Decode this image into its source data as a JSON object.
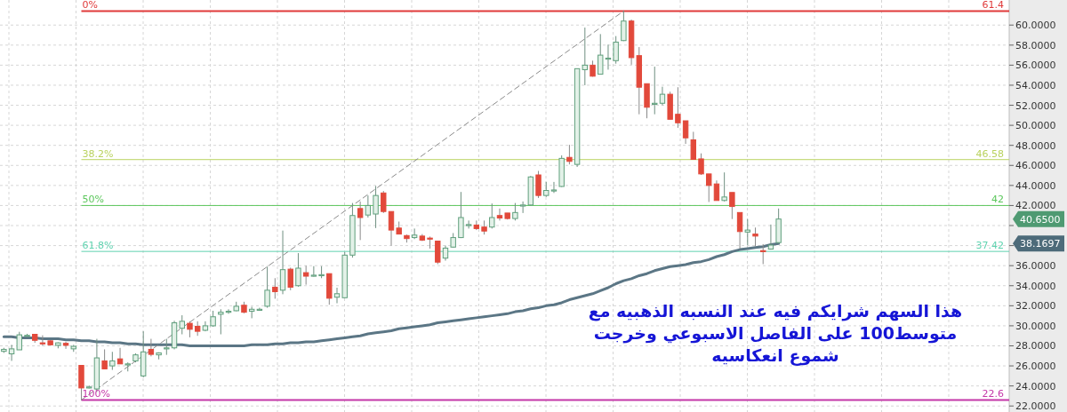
{
  "chart_data": {
    "type": "candlestick",
    "categories": [
      null,
      null,
      null,
      null,
      null,
      null,
      null,
      null,
      null,
      null,
      null,
      null,
      null,
      null,
      null,
      null,
      null,
      null,
      null,
      null,
      null,
      null,
      null,
      null,
      null,
      null,
      null,
      null,
      null,
      null,
      null,
      null,
      null,
      null,
      null,
      null,
      null,
      null,
      null,
      null,
      null,
      null,
      null,
      null,
      null,
      null,
      null,
      null,
      null,
      null,
      null,
      null,
      null,
      null,
      null,
      null,
      null,
      null,
      null,
      null,
      null,
      null,
      null,
      null,
      null,
      null,
      null,
      null,
      null,
      null,
      null,
      null,
      null,
      null,
      null,
      null,
      null,
      null,
      null,
      null,
      null,
      null,
      null,
      null,
      null,
      null,
      null,
      null,
      null,
      null,
      null,
      null,
      null,
      null,
      null,
      null,
      null,
      null,
      null,
      null,
      null
    ],
    "ohlc": [
      [
        27.45,
        27.8,
        27.3,
        27.65
      ],
      [
        27.2,
        28.1,
        26.5,
        27.7
      ],
      [
        27.6,
        29.4,
        27.6,
        29.1
      ],
      [
        29.0,
        29.2,
        28.9,
        29.05
      ],
      [
        29.15,
        29.15,
        28.3,
        28.55
      ],
      [
        28.3,
        29.05,
        28.0,
        28.2
      ],
      [
        28.5,
        28.55,
        28.05,
        28.1
      ],
      [
        28.05,
        28.35,
        27.75,
        28.3
      ],
      [
        28.25,
        28.4,
        27.7,
        28.05
      ],
      [
        27.7,
        28.1,
        27.4,
        27.95
      ],
      [
        26.05,
        26.05,
        22.6,
        23.8
      ],
      [
        23.85,
        24.05,
        23.75,
        23.9
      ],
      [
        23.7,
        28.7,
        23.4,
        26.8
      ],
      [
        26.5,
        27.65,
        25.7,
        25.7
      ],
      [
        26.0,
        27.4,
        25.6,
        26.5
      ],
      [
        26.7,
        27.8,
        26.2,
        26.2
      ],
      [
        26.15,
        26.35,
        25.45,
        26.2
      ],
      [
        26.5,
        27.25,
        26.35,
        27.1
      ],
      [
        25.0,
        29.45,
        24.85,
        27.4
      ],
      [
        27.65,
        28.7,
        26.95,
        27.15
      ],
      [
        27.1,
        27.35,
        26.65,
        27.3
      ],
      [
        27.7,
        28.7,
        27.1,
        27.8
      ],
      [
        27.8,
        30.5,
        27.65,
        30.3
      ],
      [
        29.75,
        31.05,
        29.15,
        30.45
      ],
      [
        30.25,
        30.45,
        28.85,
        29.65
      ],
      [
        29.95,
        30.45,
        29.0,
        29.45
      ],
      [
        29.55,
        30.45,
        29.45,
        30.0
      ],
      [
        30.0,
        31.5,
        29.9,
        30.9
      ],
      [
        31.15,
        31.65,
        29.15,
        31.35
      ],
      [
        31.4,
        31.65,
        31.2,
        31.45
      ],
      [
        31.5,
        32.4,
        31.45,
        31.95
      ],
      [
        32.05,
        32.4,
        31.25,
        31.35
      ],
      [
        31.45,
        31.9,
        30.75,
        31.65
      ],
      [
        31.6,
        31.8,
        31.5,
        31.65
      ],
      [
        31.95,
        35.9,
        31.8,
        33.55
      ],
      [
        33.85,
        34.75,
        32.7,
        33.4
      ],
      [
        33.55,
        39.5,
        33.15,
        35.6
      ],
      [
        35.65,
        35.8,
        33.55,
        33.85
      ],
      [
        34.0,
        37.25,
        33.9,
        35.75
      ],
      [
        35.3,
        36.0,
        34.1,
        34.95
      ],
      [
        35.0,
        35.95,
        34.9,
        35.05
      ],
      [
        35.05,
        35.95,
        34.75,
        35.1
      ],
      [
        35.2,
        35.2,
        32.1,
        32.75
      ],
      [
        32.85,
        33.8,
        32.25,
        33.2
      ],
      [
        32.8,
        37.35,
        32.75,
        37.05
      ],
      [
        37.05,
        42.25,
        36.8,
        41.0
      ],
      [
        41.7,
        42.4,
        38.55,
        40.8
      ],
      [
        41.05,
        43.0,
        40.8,
        42.0
      ],
      [
        41.15,
        43.95,
        39.75,
        43.0
      ],
      [
        43.25,
        43.45,
        41.25,
        41.4
      ],
      [
        41.4,
        41.4,
        38.0,
        39.55
      ],
      [
        39.75,
        40.4,
        39.15,
        39.15
      ],
      [
        39.0,
        39.1,
        38.3,
        38.7
      ],
      [
        38.8,
        39.7,
        38.65,
        39.05
      ],
      [
        38.95,
        39.15,
        38.45,
        38.55
      ],
      [
        38.75,
        38.9,
        37.7,
        38.7
      ],
      [
        38.45,
        38.45,
        36.15,
        36.35
      ],
      [
        36.75,
        38.0,
        36.5,
        37.75
      ],
      [
        37.85,
        39.25,
        37.8,
        38.8
      ],
      [
        38.8,
        43.35,
        38.75,
        40.8
      ],
      [
        40.05,
        40.5,
        39.7,
        40.1
      ],
      [
        40.05,
        40.5,
        39.55,
        39.7
      ],
      [
        39.85,
        40.5,
        39.1,
        39.45
      ],
      [
        39.85,
        42.2,
        39.7,
        40.8
      ],
      [
        41.0,
        41.7,
        40.5,
        40.75
      ],
      [
        41.25,
        41.25,
        40.6,
        40.7
      ],
      [
        40.7,
        42.25,
        40.5,
        41.3
      ],
      [
        42.0,
        42.4,
        41.25,
        42.05
      ],
      [
        42.05,
        44.95,
        42.0,
        44.85
      ],
      [
        45.05,
        45.45,
        42.75,
        43.0
      ],
      [
        43.0,
        44.35,
        42.85,
        43.5
      ],
      [
        43.5,
        44.35,
        43.25,
        43.55
      ],
      [
        43.9,
        47.0,
        43.85,
        46.7
      ],
      [
        46.8,
        48.05,
        46.1,
        46.4
      ],
      [
        46.1,
        55.65,
        45.85,
        55.65
      ],
      [
        55.55,
        59.75,
        54.0,
        56.0
      ],
      [
        56.0,
        56.45,
        54.85,
        54.9
      ],
      [
        55.1,
        59.1,
        55.1,
        57.0
      ],
      [
        56.65,
        58.05,
        55.55,
        56.7
      ],
      [
        56.45,
        58.9,
        56.15,
        58.3
      ],
      [
        58.45,
        61.4,
        58.4,
        60.4
      ],
      [
        60.4,
        60.55,
        56.05,
        56.75
      ],
      [
        56.95,
        57.8,
        51.1,
        53.8
      ],
      [
        54.15,
        54.15,
        50.7,
        51.8
      ],
      [
        52.15,
        55.85,
        51.1,
        52.2
      ],
      [
        52.2,
        53.85,
        52.0,
        53.1
      ],
      [
        53.1,
        53.35,
        50.6,
        50.6
      ],
      [
        51.1,
        53.8,
        49.75,
        50.25
      ],
      [
        50.45,
        50.45,
        48.15,
        48.75
      ],
      [
        48.55,
        49.35,
        46.6,
        46.6
      ],
      [
        46.65,
        47.2,
        45.05,
        45.15
      ],
      [
        45.15,
        45.15,
        42.35,
        44.0
      ],
      [
        44.15,
        44.5,
        42.5,
        42.5
      ],
      [
        42.5,
        45.3,
        42.4,
        42.85
      ],
      [
        43.3,
        43.3,
        40.65,
        41.9
      ],
      [
        41.3,
        41.3,
        37.7,
        39.4
      ],
      [
        39.35,
        40.65,
        38.05,
        39.55
      ],
      [
        39.15,
        39.8,
        37.95,
        38.95
      ],
      [
        37.5,
        38.15,
        36.15,
        37.45
      ],
      [
        37.65,
        40.1,
        37.6,
        38.05
      ],
      [
        38.3,
        41.7,
        38.2,
        40.65
      ]
    ],
    "series": [
      {
        "type": "line",
        "color": "#5b7685",
        "values": [
          28.9,
          28.9,
          28.8,
          28.8,
          28.8,
          28.7,
          28.7,
          28.7,
          28.6,
          28.6,
          28.5,
          28.5,
          28.4,
          28.4,
          28.3,
          28.3,
          28.2,
          28.2,
          28.1,
          28.1,
          28.1,
          28.1,
          28.1,
          28.1,
          28.0,
          28.0,
          28.0,
          28.0,
          28.0,
          28.0,
          28.0,
          28.0,
          28.1,
          28.1,
          28.1,
          28.2,
          28.2,
          28.3,
          28.3,
          28.4,
          28.4,
          28.5,
          28.6,
          28.7,
          28.8,
          28.9,
          29.0,
          29.2,
          29.3,
          29.4,
          29.5,
          29.7,
          29.8,
          29.9,
          30.0,
          30.1,
          30.3,
          30.4,
          30.5,
          30.6,
          30.7,
          30.8,
          30.9,
          31.0,
          31.1,
          31.2,
          31.4,
          31.5,
          31.7,
          31.8,
          32.0,
          32.1,
          32.3,
          32.6,
          32.8,
          33.0,
          33.2,
          33.5,
          33.8,
          34.2,
          34.5,
          34.7,
          35.0,
          35.2,
          35.5,
          35.7,
          35.9,
          36.0,
          36.1,
          36.3,
          36.4,
          36.6,
          36.9,
          37.1,
          37.4,
          37.6,
          37.7,
          37.8,
          37.9,
          38.1,
          38.2
        ]
      },
      {
        "type": "line",
        "color": "#8a8a8a",
        "line_style": "dashed",
        "values": [
          null,
          null,
          null,
          null,
          null,
          null,
          null,
          null,
          null,
          null,
          22.6,
          null,
          null,
          null,
          null,
          null,
          null,
          null,
          null,
          null,
          null,
          null,
          null,
          null,
          null,
          null,
          null,
          null,
          null,
          null,
          null,
          null,
          null,
          null,
          null,
          null,
          null,
          null,
          null,
          null,
          null,
          null,
          null,
          null,
          null,
          null,
          null,
          null,
          null,
          null,
          null,
          null,
          null,
          null,
          null,
          null,
          null,
          null,
          null,
          null,
          null,
          null,
          null,
          null,
          null,
          null,
          null,
          null,
          null,
          null,
          null,
          null,
          null,
          null,
          null,
          null,
          null,
          null,
          null,
          null,
          61.4,
          null,
          null,
          null,
          null,
          null,
          null,
          null,
          null,
          null,
          null,
          null,
          null,
          null,
          null,
          null,
          null,
          null,
          null,
          null,
          null
        ]
      }
    ],
    "ylim": [
      21.4,
      62.5
    ],
    "yticks": [
      {
        "value": 22,
        "label": "22.0000"
      },
      {
        "value": 24,
        "label": "24.0000"
      },
      {
        "value": 26,
        "label": "26.0000"
      },
      {
        "value": 28,
        "label": "28.0000"
      },
      {
        "value": 30,
        "label": "30.0000"
      },
      {
        "value": 32,
        "label": "32.0000"
      },
      {
        "value": 34,
        "label": "34.0000"
      },
      {
        "value": 36,
        "label": "36.0000"
      },
      {
        "value": 38,
        "label": null
      },
      {
        "value": 40,
        "label": null
      },
      {
        "value": 42,
        "label": "42.0000"
      },
      {
        "value": 44,
        "label": "44.0000"
      },
      {
        "value": 46,
        "label": "46.0000"
      },
      {
        "value": 48,
        "label": "48.0000"
      },
      {
        "value": 50,
        "label": "50.0000"
      },
      {
        "value": 52,
        "label": "52.0000"
      },
      {
        "value": 54,
        "label": "54.0000"
      },
      {
        "value": 56,
        "label": "56.0000"
      },
      {
        "value": 58,
        "label": "58.0000"
      },
      {
        "value": 60,
        "label": "60.0000"
      }
    ],
    "ref_lines": [
      {
        "axis": "y",
        "value": 61.4,
        "label": "61.4",
        "color": "#e03a3a"
      },
      {
        "axis": "y",
        "value": 46.58,
        "label": "46.58",
        "color": "#b9d25e"
      },
      {
        "axis": "y",
        "value": 42,
        "label": "42",
        "color": "#5cc75c"
      },
      {
        "axis": "y",
        "value": 37.42,
        "label": "37.42",
        "color": "#5fd3b0"
      },
      {
        "axis": "y",
        "value": 22.6,
        "label": "22.6",
        "color": "#c437a8"
      }
    ],
    "annotations": [
      "هذا السهم شرايكم فيه عند النسبه الذهبيه مع\nمتوسط100 على الفاصل الاسبوعي وخرجت\nشموع انعكاسيه",
      "0%",
      "38.2%",
      "50%",
      "61.8%",
      "100%",
      "40.6500",
      "38.1697"
    ],
    "grid": true,
    "tick_labels": "y"
  }
}
